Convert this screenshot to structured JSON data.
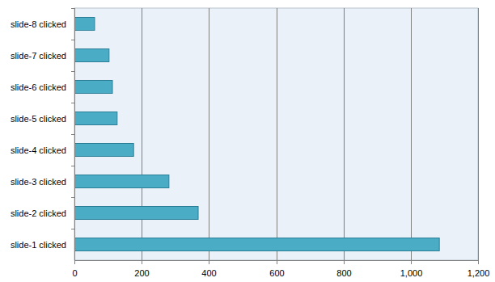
{
  "chart_data": {
    "type": "bar",
    "orientation": "horizontal",
    "categories": [
      "slide-1 clicked",
      "slide-2 clicked",
      "slide-3 clicked",
      "slide-4 clicked",
      "slide-5 clicked",
      "slide-6 clicked",
      "slide-7 clicked",
      "slide-8 clicked"
    ],
    "values": [
      1085,
      368,
      281,
      176,
      127,
      113,
      103,
      60
    ],
    "color": "#4bacc6",
    "xlim": [
      0,
      1200
    ],
    "xticks": [
      0,
      200,
      400,
      600,
      800,
      {
        "value": 1000,
        "label": "1,000"
      },
      {
        "value": 1200,
        "label": "1,200"
      }
    ],
    "grid": true
  }
}
